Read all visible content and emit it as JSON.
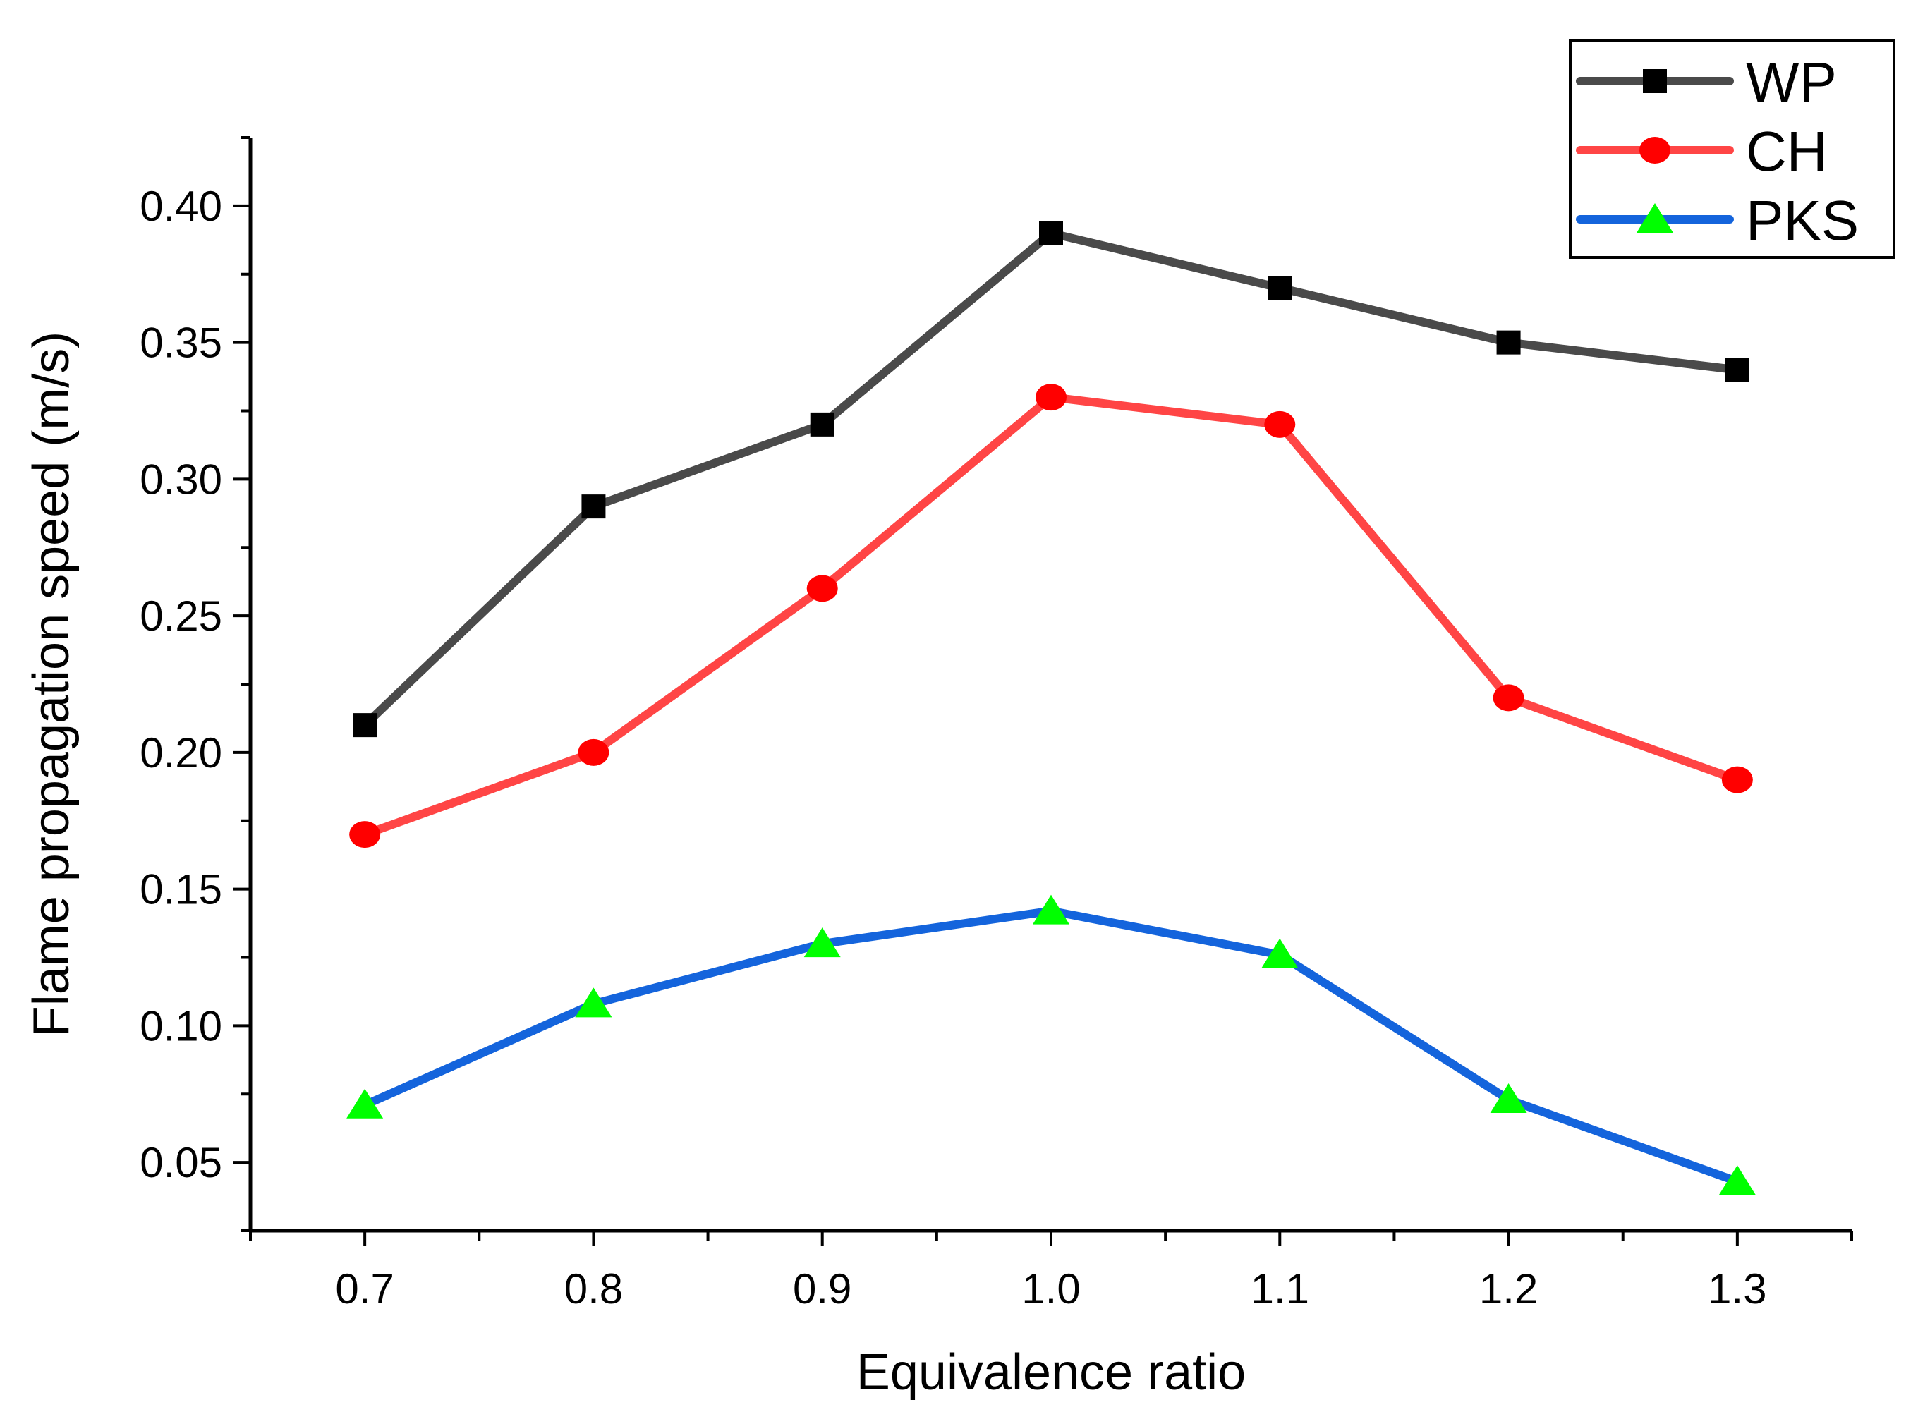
{
  "chart_data": {
    "type": "line",
    "title": "",
    "xlabel": "Equivalence ratio",
    "ylabel": "Flame propagation speed (m/s)",
    "x": [
      0.7,
      0.8,
      0.9,
      1.0,
      1.1,
      1.2,
      1.3
    ],
    "xlim": [
      0.65,
      1.35
    ],
    "ylim": [
      0.025,
      0.425
    ],
    "x_ticks": [
      "0.7",
      "0.8",
      "0.9",
      "1.0",
      "1.1",
      "1.2",
      "1.3"
    ],
    "y_ticks": [
      "0.05",
      "0.10",
      "0.15",
      "0.20",
      "0.25",
      "0.30",
      "0.35",
      "0.40"
    ],
    "grid": false,
    "legend_position": "top-right",
    "series": [
      {
        "name": "WP",
        "color": "#4a4a4a",
        "marker": "square",
        "marker_color": "#000000",
        "values": [
          0.21,
          0.29,
          0.32,
          0.39,
          0.37,
          0.35,
          0.34
        ]
      },
      {
        "name": "CH",
        "color": "#ff4545",
        "marker": "circle",
        "marker_color": "#ff0000",
        "values": [
          0.17,
          0.2,
          0.26,
          0.33,
          0.32,
          0.22,
          0.19
        ]
      },
      {
        "name": "PKS",
        "color": "#1464dc",
        "marker": "triangle",
        "marker_color": "#00ff00",
        "values": [
          0.071,
          0.108,
          0.13,
          0.142,
          0.126,
          0.073,
          0.043
        ]
      }
    ]
  }
}
